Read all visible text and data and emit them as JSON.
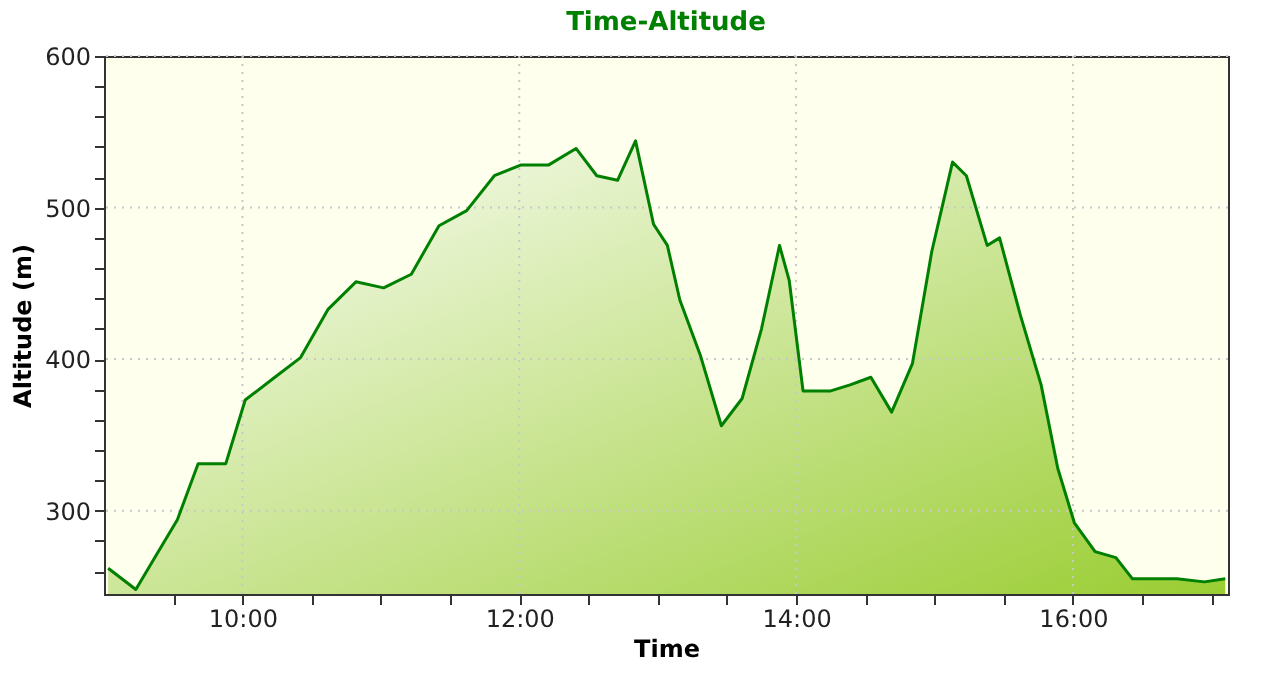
{
  "chart_data": {
    "type": "area",
    "title": "Time-Altitude",
    "xlabel": "Time",
    "ylabel": "Altitude (m)",
    "x": [
      9.03,
      9.23,
      9.38,
      9.53,
      9.68,
      9.88,
      10.02,
      10.22,
      10.42,
      10.62,
      10.82,
      11.02,
      11.22,
      11.42,
      11.62,
      11.82,
      12.01,
      12.21,
      12.41,
      12.56,
      12.71,
      12.84,
      12.97,
      13.07,
      13.16,
      13.31,
      13.46,
      13.61,
      13.75,
      13.88,
      13.95,
      14.05,
      14.25,
      14.39,
      14.54,
      14.69,
      14.84,
      14.98,
      15.13,
      15.23,
      15.38,
      15.47,
      15.62,
      15.77,
      15.89,
      16.01,
      16.16,
      16.31,
      16.43,
      16.75,
      16.95,
      17.1
    ],
    "series": [
      {
        "color": "#008000",
        "values": [
          262,
          248,
          271,
          294,
          331,
          331,
          373,
          387,
          401,
          433,
          451,
          447,
          456,
          488,
          498,
          521,
          528,
          528,
          539,
          521,
          518,
          544,
          489,
          475,
          439,
          402,
          356,
          374,
          420,
          475,
          452,
          379,
          379,
          383,
          388,
          365,
          397,
          471,
          530,
          521,
          475,
          480,
          429,
          383,
          328,
          292,
          273,
          269,
          255,
          255,
          253,
          255
        ]
      }
    ],
    "xlim": [
      9.0,
      17.12
    ],
    "ylim": [
      245,
      600
    ],
    "xticks": [
      {
        "value": 9.5,
        "label": null
      },
      {
        "value": 10,
        "label": "10:00"
      },
      {
        "value": 10.5,
        "label": null
      },
      {
        "value": 11,
        "label": null
      },
      {
        "value": 11.5,
        "label": null
      },
      {
        "value": 12,
        "label": "12:00"
      },
      {
        "value": 12.5,
        "label": null
      },
      {
        "value": 13,
        "label": null
      },
      {
        "value": 13.5,
        "label": null
      },
      {
        "value": 14,
        "label": "14:00"
      },
      {
        "value": 14.5,
        "label": null
      },
      {
        "value": 15,
        "label": null
      },
      {
        "value": 15.5,
        "label": null
      },
      {
        "value": 16,
        "label": "16:00"
      },
      {
        "value": 16.5,
        "label": null
      },
      {
        "value": 17,
        "label": null
      }
    ],
    "yticks": [
      {
        "value": 260,
        "label": null
      },
      {
        "value": 280,
        "label": null
      },
      300,
      {
        "value": 320,
        "label": null
      },
      {
        "value": 340,
        "label": null
      },
      {
        "value": 360,
        "label": null
      },
      {
        "value": 380,
        "label": null
      },
      400,
      {
        "value": 420,
        "label": null
      },
      {
        "value": 440,
        "label": null
      },
      {
        "value": 460,
        "label": null
      },
      {
        "value": 480,
        "label": null
      },
      500,
      {
        "value": 520,
        "label": null
      },
      {
        "value": 540,
        "label": null
      },
      {
        "value": 560,
        "label": null
      },
      {
        "value": 580,
        "label": null
      },
      600
    ],
    "grid": true
  }
}
